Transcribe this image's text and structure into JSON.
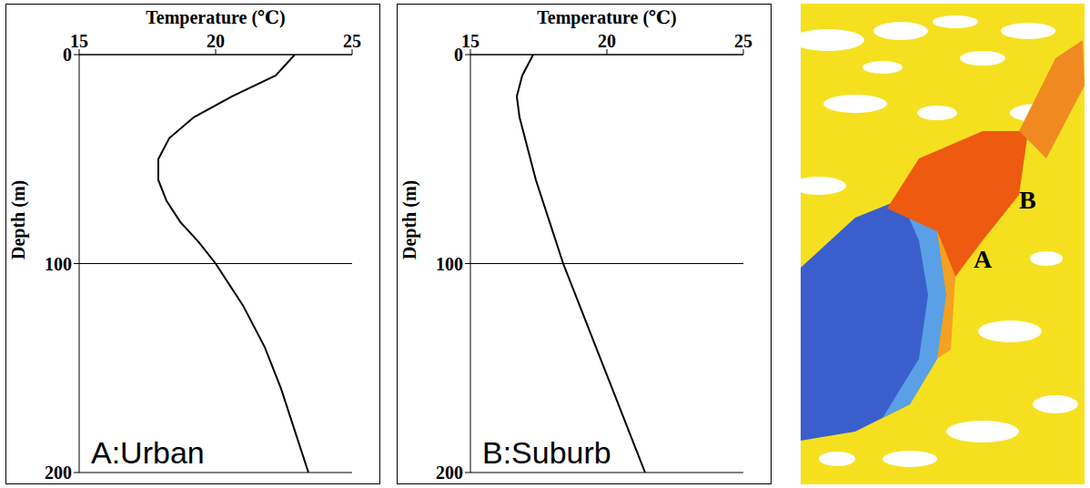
{
  "chart_data": [
    {
      "type": "line",
      "x_label": "Temperature (℃)",
      "y_label": "Depth (m)",
      "annotation": "A:Urban",
      "xlim": [
        15,
        25
      ],
      "xticks": [
        15,
        20,
        25
      ],
      "ylim": [
        0,
        200
      ],
      "yticks": [
        0,
        100,
        200
      ],
      "grid": true,
      "color": "#000000",
      "x": [
        22.9,
        22.2,
        20.6,
        19.2,
        18.3,
        17.9,
        17.9,
        18.2,
        18.7,
        19.4,
        20.0,
        21.0,
        21.8,
        22.4,
        22.9,
        23.4
      ],
      "y": [
        0,
        10,
        20,
        30,
        40,
        50,
        60,
        70,
        80,
        90,
        100,
        120,
        140,
        160,
        180,
        200
      ]
    },
    {
      "type": "line",
      "x_label": "Temperature (℃)",
      "y_label": "Depth (m)",
      "annotation": "B:Suburb",
      "xlim": [
        15,
        25
      ],
      "xticks": [
        15,
        20,
        25
      ],
      "ylim": [
        0,
        200
      ],
      "yticks": [
        0,
        100,
        200
      ],
      "grid": true,
      "color": "#000000",
      "x": [
        17.3,
        16.9,
        16.7,
        16.8,
        17.0,
        17.4,
        17.9,
        18.4,
        19.0,
        19.6,
        20.2,
        20.8,
        21.4
      ],
      "y": [
        0,
        10,
        20,
        30,
        40,
        60,
        80,
        100,
        120,
        140,
        160,
        180,
        200
      ]
    }
  ],
  "map": {
    "labels": [
      "A",
      "B"
    ]
  }
}
